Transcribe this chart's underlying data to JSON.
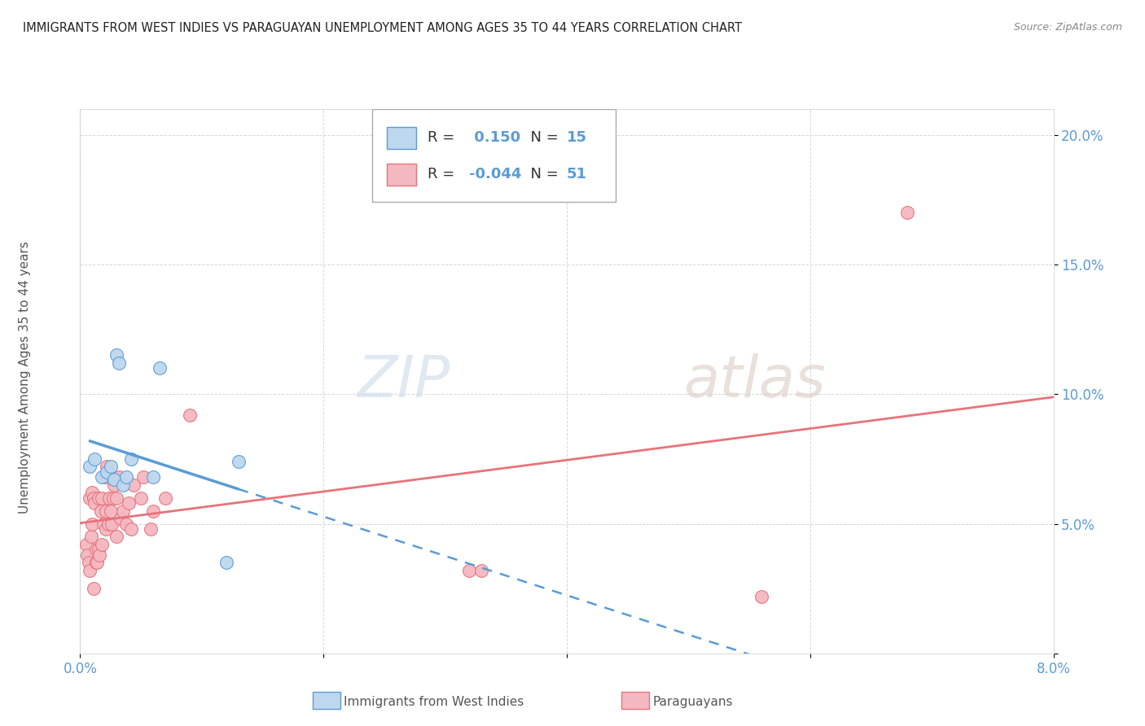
{
  "title": "IMMIGRANTS FROM WEST INDIES VS PARAGUAYAN UNEMPLOYMENT AMONG AGES 35 TO 44 YEARS CORRELATION CHART",
  "source": "Source: ZipAtlas.com",
  "ylabel": "Unemployment Among Ages 35 to 44 years",
  "xlim": [
    0.0,
    0.08
  ],
  "ylim": [
    0.0,
    0.21
  ],
  "legend_r_blue": "0.150",
  "legend_r_pink": "-0.044",
  "legend_n_blue": 15,
  "legend_n_pink": 51,
  "watermark_zip": "ZIP",
  "watermark_atlas": "atlas",
  "blue_color": "#5b9bd5",
  "pink_color": "#e8737a",
  "blue_fill": "#bdd7ee",
  "pink_fill": "#f4b8c1",
  "west_indies_x": [
    0.0008,
    0.0012,
    0.0018,
    0.0022,
    0.0025,
    0.0028,
    0.003,
    0.0032,
    0.0035,
    0.0038,
    0.0042,
    0.006,
    0.0065,
    0.012,
    0.013
  ],
  "west_indies_y": [
    0.072,
    0.075,
    0.068,
    0.07,
    0.072,
    0.067,
    0.115,
    0.112,
    0.065,
    0.068,
    0.075,
    0.068,
    0.11,
    0.035,
    0.074
  ],
  "paraguayan_x": [
    0.0005,
    0.0006,
    0.0007,
    0.0008,
    0.0008,
    0.0009,
    0.001,
    0.001,
    0.0011,
    0.0011,
    0.0012,
    0.0013,
    0.0013,
    0.0014,
    0.0015,
    0.0015,
    0.0016,
    0.0017,
    0.0018,
    0.0018,
    0.0019,
    0.002,
    0.0021,
    0.0021,
    0.0022,
    0.0022,
    0.0023,
    0.0024,
    0.0025,
    0.0026,
    0.0027,
    0.0028,
    0.003,
    0.003,
    0.0032,
    0.0033,
    0.0035,
    0.0038,
    0.004,
    0.0042,
    0.0044,
    0.005,
    0.0052,
    0.0058,
    0.006,
    0.007,
    0.009,
    0.032,
    0.033,
    0.056,
    0.068
  ],
  "paraguayan_y": [
    0.042,
    0.038,
    0.035,
    0.06,
    0.032,
    0.045,
    0.062,
    0.05,
    0.06,
    0.025,
    0.058,
    0.035,
    0.04,
    0.035,
    0.06,
    0.04,
    0.038,
    0.055,
    0.06,
    0.042,
    0.05,
    0.068,
    0.055,
    0.048,
    0.068,
    0.072,
    0.05,
    0.06,
    0.055,
    0.05,
    0.06,
    0.065,
    0.06,
    0.045,
    0.068,
    0.052,
    0.055,
    0.05,
    0.058,
    0.048,
    0.065,
    0.06,
    0.068,
    0.048,
    0.055,
    0.06,
    0.092,
    0.032,
    0.032,
    0.022,
    0.17
  ]
}
